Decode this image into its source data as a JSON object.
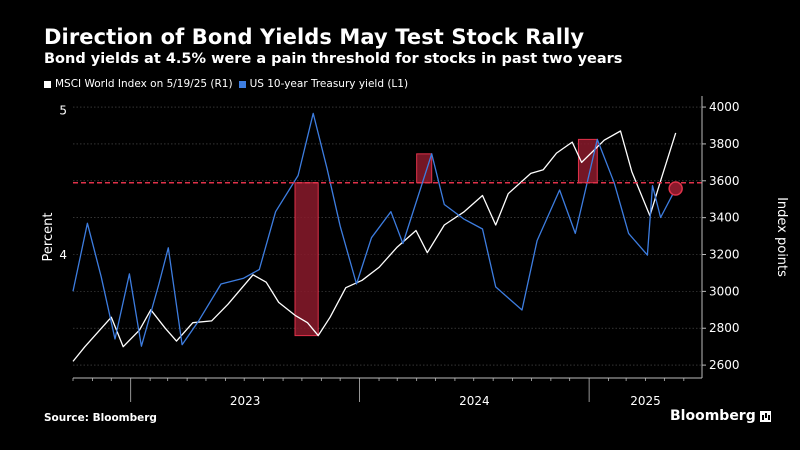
{
  "header": {
    "title": "Direction of Bond Yields May Test Stock Rally",
    "subtitle": "Bond yields at 4.5% were a pain threshold for stocks in past two years"
  },
  "footer": {
    "source": "Source: Bloomberg",
    "brand": "Bloomberg"
  },
  "colors": {
    "msci": "#ffffff",
    "yield": "#3d7de0",
    "threshold": "#e0324a",
    "highlight": "#8a1a2c"
  },
  "chart_data": {
    "type": "line",
    "x_range": [
      "2022-10-01",
      "2025-06-30"
    ],
    "left_axis": {
      "label": "Percent",
      "ticks": [
        4,
        5
      ],
      "range": [
        3.15,
        5.1
      ]
    },
    "right_axis": {
      "label": "Index points",
      "ticks": [
        2600,
        2800,
        3000,
        3200,
        3400,
        3600,
        3800,
        4000
      ],
      "range": [
        2530,
        4060
      ]
    },
    "x_ticks": [
      "2023",
      "2024",
      "2025"
    ],
    "threshold": {
      "axis": "left",
      "value": 4.5
    },
    "series": [
      {
        "name": "MSCI World Index on 5/19/25 (R1)",
        "axis": "right",
        "points": [
          [
            "2022-10-01",
            2620
          ],
          [
            "2022-10-20",
            2700
          ],
          [
            "2022-11-10",
            2780
          ],
          [
            "2022-12-01",
            2860
          ],
          [
            "2022-12-20",
            2700
          ],
          [
            "2023-01-15",
            2790
          ],
          [
            "2023-02-02",
            2900
          ],
          [
            "2023-02-25",
            2800
          ],
          [
            "2023-03-15",
            2730
          ],
          [
            "2023-04-10",
            2830
          ],
          [
            "2023-05-10",
            2840
          ],
          [
            "2023-06-05",
            2930
          ],
          [
            "2023-07-15",
            3090
          ],
          [
            "2023-08-05",
            3050
          ],
          [
            "2023-08-25",
            2940
          ],
          [
            "2023-09-20",
            2870
          ],
          [
            "2023-10-10",
            2830
          ],
          [
            "2023-10-27",
            2760
          ],
          [
            "2023-11-15",
            2860
          ],
          [
            "2023-12-10",
            3020
          ],
          [
            "2024-01-05",
            3060
          ],
          [
            "2024-02-01",
            3130
          ],
          [
            "2024-03-01",
            3240
          ],
          [
            "2024-03-31",
            3330
          ],
          [
            "2024-04-18",
            3210
          ],
          [
            "2024-05-15",
            3360
          ],
          [
            "2024-06-15",
            3430
          ],
          [
            "2024-07-15",
            3520
          ],
          [
            "2024-08-05",
            3360
          ],
          [
            "2024-08-25",
            3530
          ],
          [
            "2024-09-30",
            3640
          ],
          [
            "2024-10-20",
            3660
          ],
          [
            "2024-11-10",
            3750
          ],
          [
            "2024-12-05",
            3810
          ],
          [
            "2024-12-20",
            3700
          ],
          [
            "2025-01-25",
            3820
          ],
          [
            "2025-02-20",
            3870
          ],
          [
            "2025-03-10",
            3650
          ],
          [
            "2025-04-08",
            3410
          ],
          [
            "2025-04-25",
            3600
          ],
          [
            "2025-05-19",
            3860
          ]
        ]
      },
      {
        "name": "US 10-year Treasury yield (L1)",
        "axis": "left",
        "points": [
          [
            "2022-10-01",
            3.75
          ],
          [
            "2022-10-24",
            4.22
          ],
          [
            "2022-11-15",
            3.85
          ],
          [
            "2022-12-07",
            3.42
          ],
          [
            "2022-12-30",
            3.87
          ],
          [
            "2023-01-18",
            3.37
          ],
          [
            "2023-02-15",
            3.8
          ],
          [
            "2023-03-02",
            4.05
          ],
          [
            "2023-03-24",
            3.38
          ],
          [
            "2023-04-20",
            3.55
          ],
          [
            "2023-05-25",
            3.8
          ],
          [
            "2023-06-30",
            3.84
          ],
          [
            "2023-07-25",
            3.9
          ],
          [
            "2023-08-20",
            4.3
          ],
          [
            "2023-09-25",
            4.55
          ],
          [
            "2023-10-19",
            4.98
          ],
          [
            "2023-11-10",
            4.6
          ],
          [
            "2023-12-01",
            4.2
          ],
          [
            "2023-12-27",
            3.8
          ],
          [
            "2024-01-20",
            4.12
          ],
          [
            "2024-02-20",
            4.3
          ],
          [
            "2024-03-10",
            4.08
          ],
          [
            "2024-04-25",
            4.7
          ],
          [
            "2024-05-15",
            4.35
          ],
          [
            "2024-06-15",
            4.25
          ],
          [
            "2024-07-15",
            4.18
          ],
          [
            "2024-08-05",
            3.78
          ],
          [
            "2024-09-16",
            3.62
          ],
          [
            "2024-10-10",
            4.1
          ],
          [
            "2024-11-15",
            4.45
          ],
          [
            "2024-12-10",
            4.15
          ],
          [
            "2025-01-14",
            4.8
          ],
          [
            "2025-02-10",
            4.5
          ],
          [
            "2025-03-05",
            4.15
          ],
          [
            "2025-04-04",
            4.0
          ],
          [
            "2025-04-12",
            4.48
          ],
          [
            "2025-04-25",
            4.26
          ],
          [
            "2025-05-19",
            4.46
          ]
        ]
      }
    ]
  }
}
